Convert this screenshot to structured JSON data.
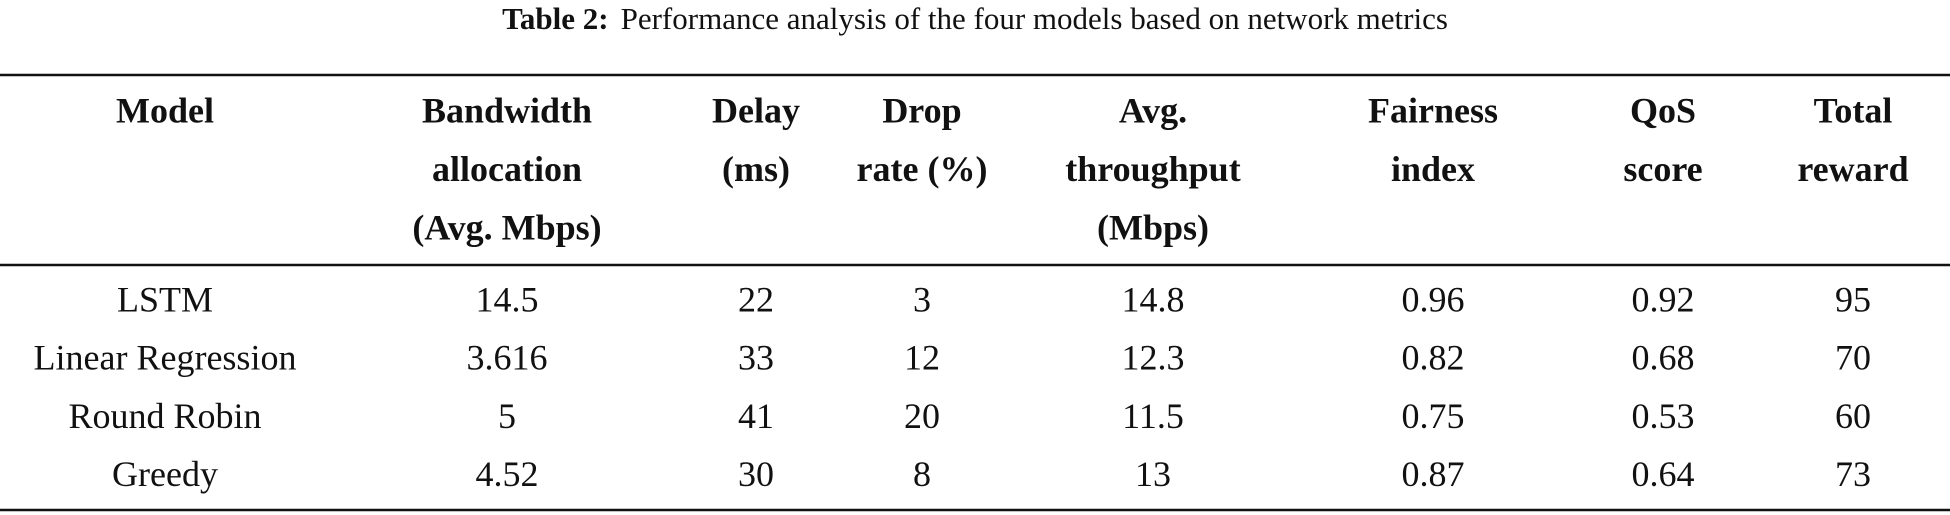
{
  "caption": {
    "label": "Table 2:",
    "text": "Performance analysis of the four models based on network metrics"
  },
  "table": {
    "header": [
      [
        "Model"
      ],
      [
        "Bandwidth",
        "allocation",
        "(Avg. Mbps)"
      ],
      [
        "Delay",
        "(ms)"
      ],
      [
        "Drop",
        "rate (%)"
      ],
      [
        "Avg.",
        "throughput",
        "(Mbps)"
      ],
      [
        "Fairness",
        "index"
      ],
      [
        "QoS",
        "score"
      ],
      [
        "Total",
        "reward"
      ]
    ],
    "rows": [
      [
        "LSTM",
        14.5,
        22,
        3,
        14.8,
        0.96,
        0.92,
        95
      ],
      [
        "Linear Regression",
        3.616,
        33,
        12,
        12.3,
        0.82,
        0.68,
        70
      ],
      [
        "Round Robin",
        5,
        41,
        20,
        11.5,
        0.75,
        0.53,
        60
      ],
      [
        "Greedy",
        4.52,
        30,
        8,
        13,
        0.87,
        0.64,
        73
      ]
    ]
  }
}
